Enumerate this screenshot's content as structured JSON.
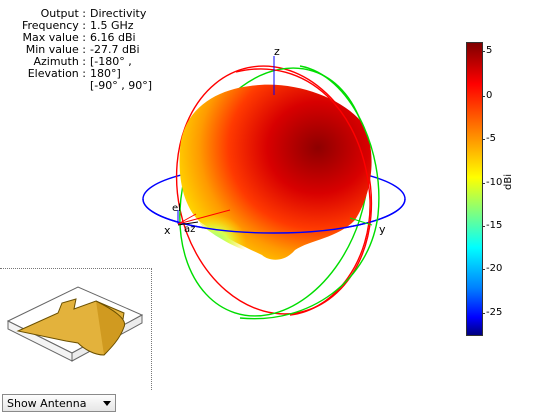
{
  "info": {
    "rows": [
      {
        "key": "Output :",
        "value": "Directivity"
      },
      {
        "key": "Frequency :",
        "value": "1.5 GHz"
      },
      {
        "key": "Max value :",
        "value": "6.16 dBi"
      },
      {
        "key": "Min value :",
        "value": "-27.7 dBi"
      },
      {
        "key": "Azimuth :",
        "value": "[-180° ,"
      },
      {
        "key": "Elevation :",
        "value": "180°]"
      },
      {
        "key": "",
        "value": "[-90° , 90°]"
      }
    ]
  },
  "axes": {
    "x": "x",
    "y": "y",
    "z": "z",
    "el": "el",
    "az": "az"
  },
  "colorbar": {
    "unit": "dBi",
    "ticks": [
      "5",
      "0",
      "-5",
      "-10",
      "-15",
      "-20",
      "-25"
    ],
    "max": 6.16,
    "min": -27.7
  },
  "inset": {
    "dropdown_value": "Show Antenna"
  },
  "colors": {
    "elevation_circle_1": "#ff0000",
    "elevation_circle_2": "#00dd00",
    "azimuth_circle": "#0000ff",
    "antenna_fill": "#e3b23c"
  }
}
